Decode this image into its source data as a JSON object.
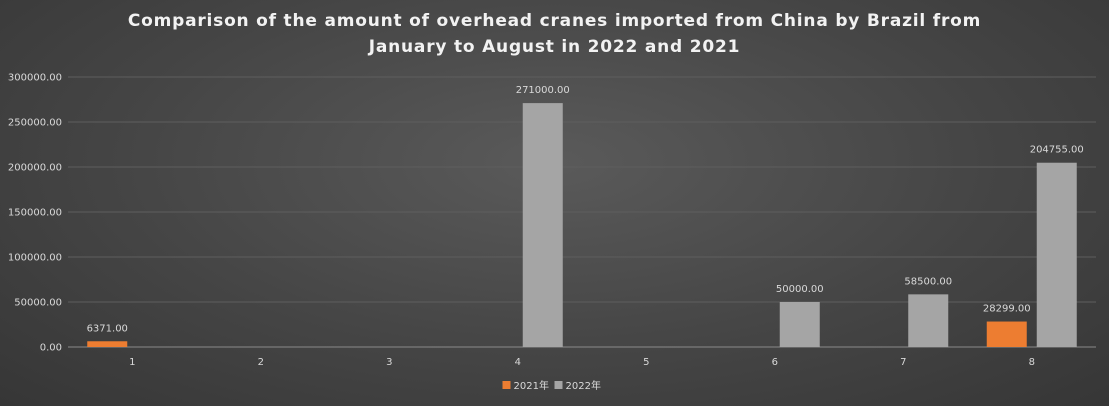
{
  "chart_data": {
    "type": "bar",
    "title_lines": [
      "Comparison of the amount of overhead cranes imported from China by Brazil from",
      "January to August in 2022 and 2021"
    ],
    "categories": [
      "1",
      "2",
      "3",
      "4",
      "5",
      "6",
      "7",
      "8"
    ],
    "series": [
      {
        "name": "2021年",
        "color": "#ed7d31",
        "values": [
          6371,
          0,
          0,
          0,
          0,
          0,
          0,
          28299
        ],
        "labels": [
          "6371.00",
          null,
          null,
          null,
          null,
          null,
          null,
          "28299.00"
        ]
      },
      {
        "name": "2022年",
        "color": "#a5a5a5",
        "values": [
          0,
          0,
          0,
          271000,
          0,
          50000,
          58500,
          204755
        ],
        "labels": [
          null,
          null,
          null,
          "271000.00",
          null,
          "50000.00",
          "58500.00",
          "204755.00"
        ]
      }
    ],
    "ylim": [
      0,
      300000
    ],
    "yticks": [
      0,
      50000,
      100000,
      150000,
      200000,
      250000,
      300000
    ],
    "ytick_labels": [
      "0.00",
      "50000.00",
      "100000.00",
      "150000.00",
      "200000.00",
      "250000.00",
      "300000.00"
    ],
    "grid": true,
    "legend_position": "bottom"
  }
}
